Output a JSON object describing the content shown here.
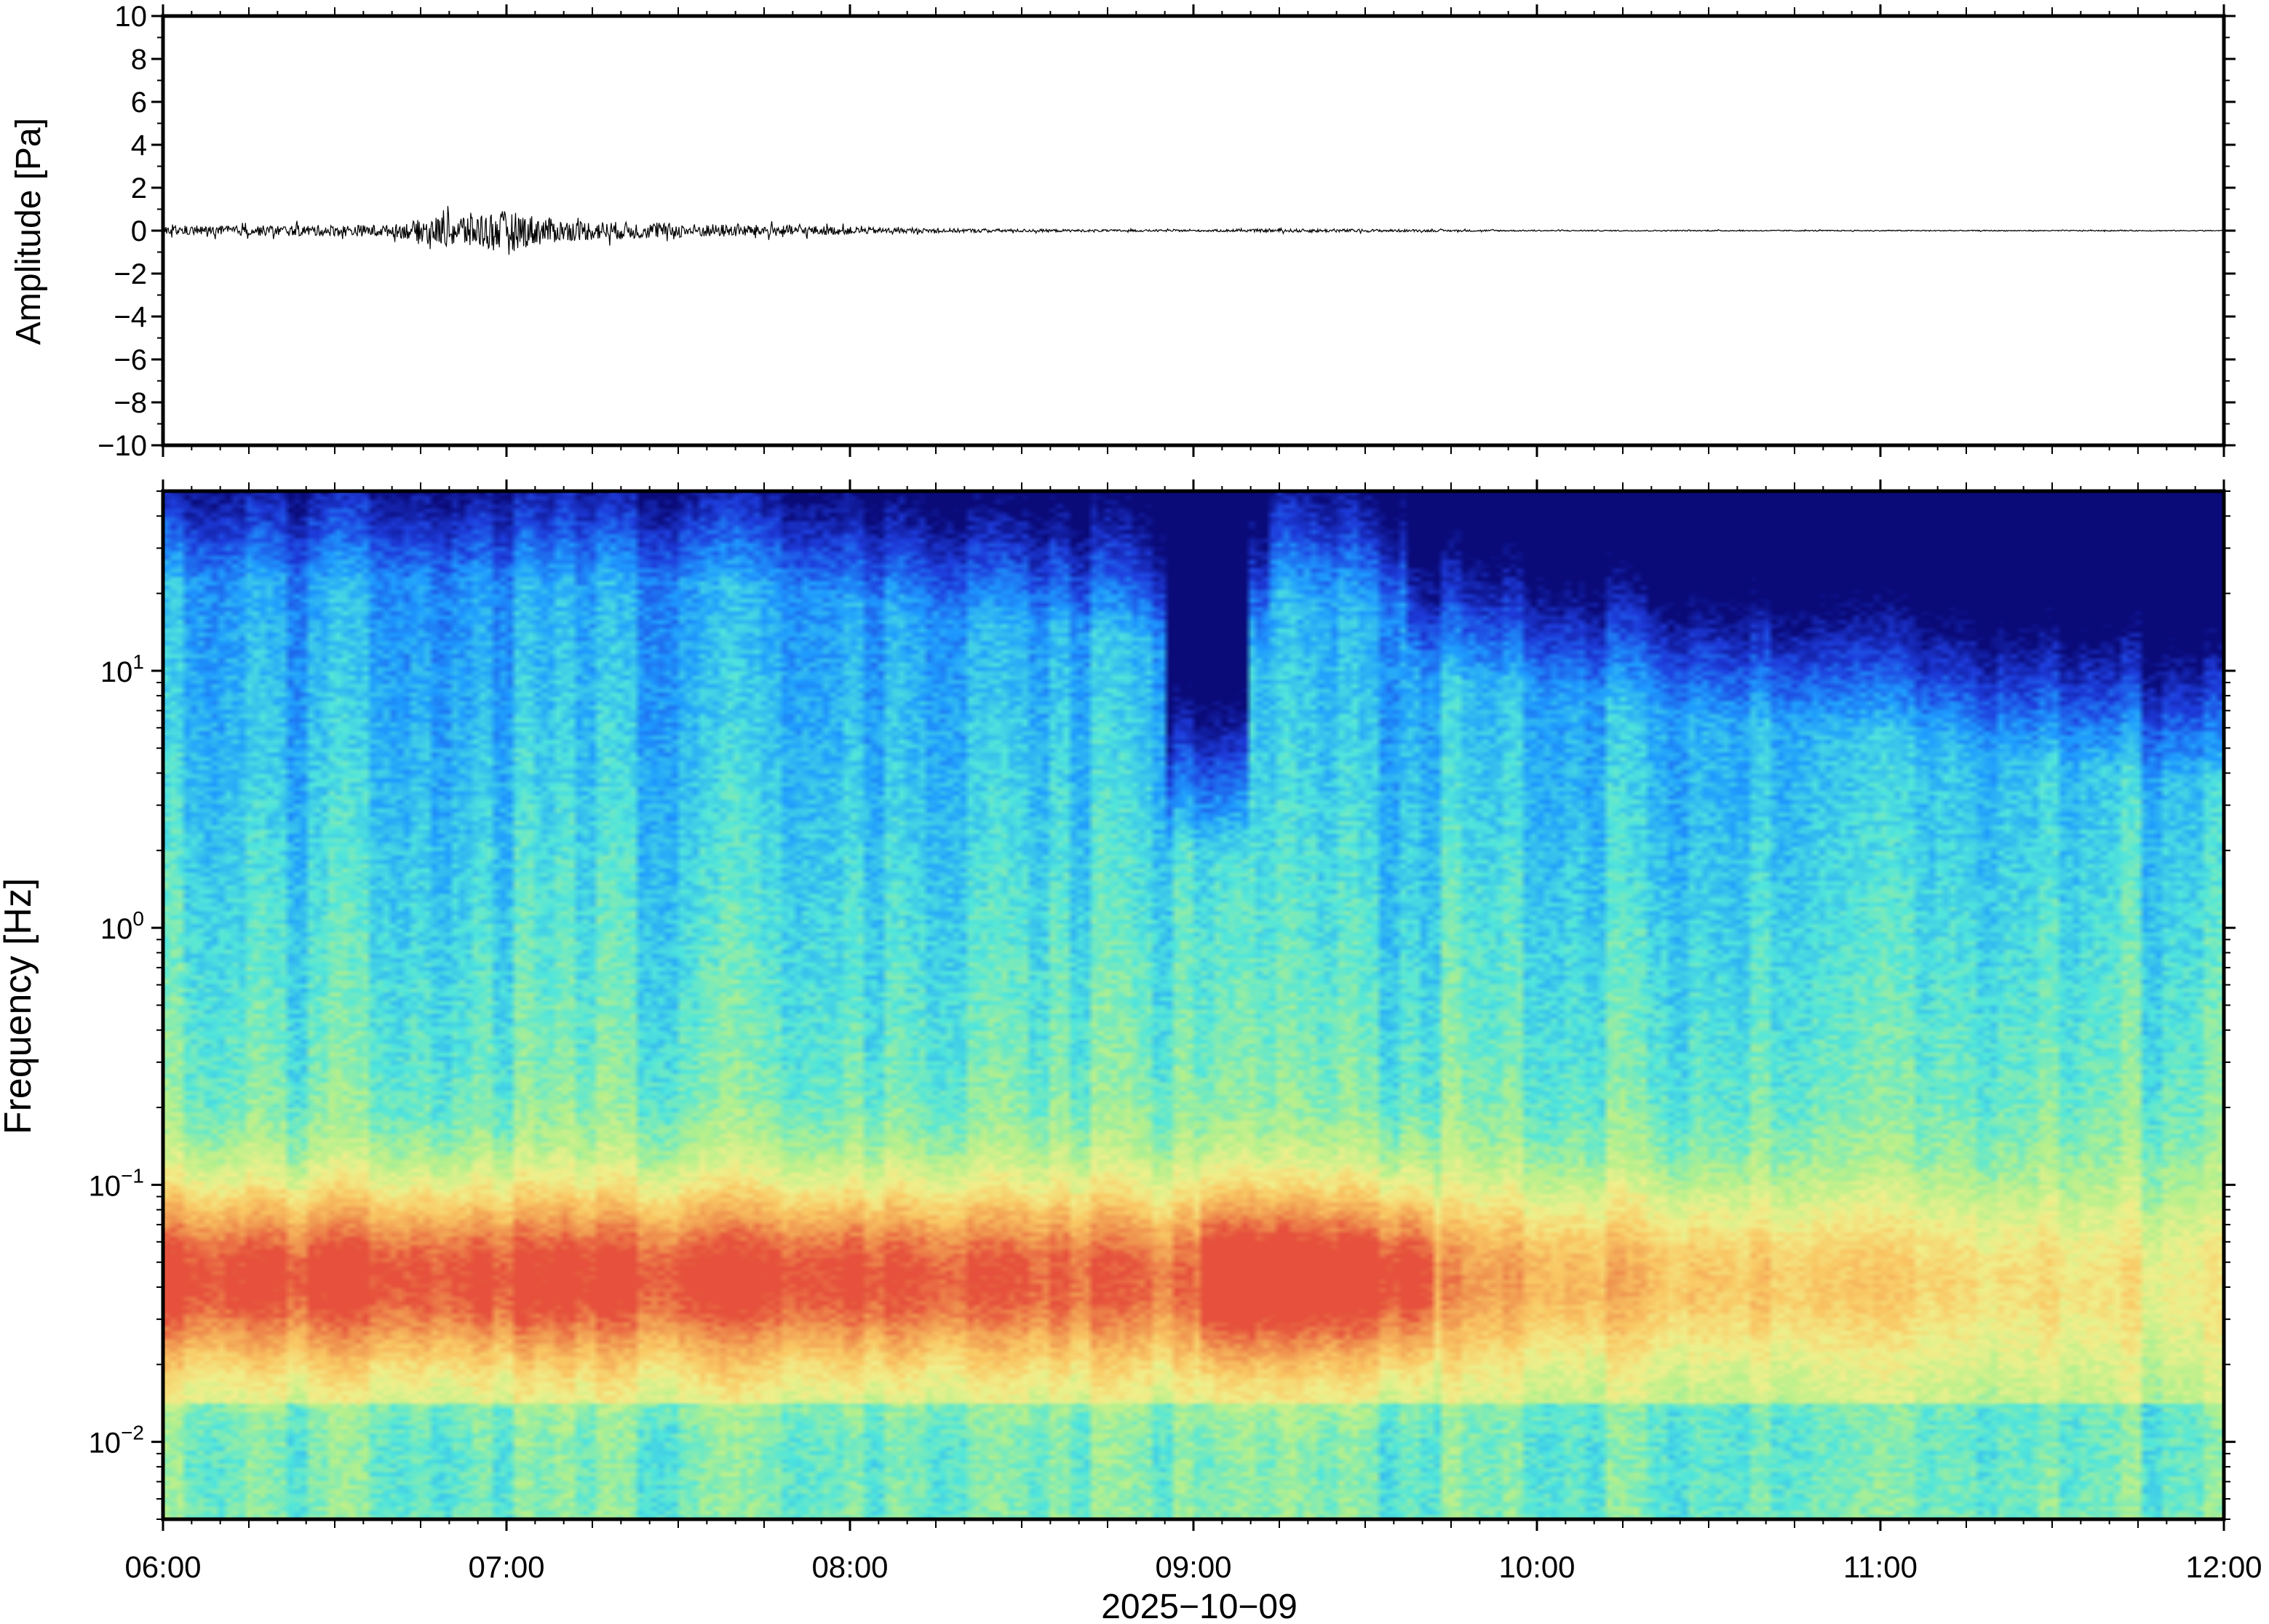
{
  "chart_data": [
    {
      "type": "line",
      "panel": "waveform",
      "ylabel": "Amplitude [Pa]",
      "ylim": [
        -10,
        10
      ],
      "yticks": [
        -10,
        -8,
        -6,
        -4,
        -2,
        0,
        2,
        4,
        6,
        8,
        10
      ],
      "ytick_labels": [
        "−10",
        "−8",
        "−6",
        "−4",
        "−2",
        "0",
        "2",
        "4",
        "6",
        "8",
        "10"
      ],
      "xlim": [
        "06:00",
        "12:00"
      ],
      "trace_color": "#000000",
      "envelope": [
        {
          "t": "06:00",
          "amp": 0.35
        },
        {
          "t": "06:20",
          "amp": 0.45
        },
        {
          "t": "06:40",
          "amp": 0.5
        },
        {
          "t": "06:50",
          "amp": 1.4
        },
        {
          "t": "07:00",
          "amp": 1.7
        },
        {
          "t": "07:10",
          "amp": 0.9
        },
        {
          "t": "07:30",
          "amp": 0.6
        },
        {
          "t": "07:50",
          "amp": 0.45
        },
        {
          "t": "08:10",
          "amp": 0.2
        },
        {
          "t": "08:40",
          "amp": 0.1
        },
        {
          "t": "09:00",
          "amp": 0.08
        },
        {
          "t": "09:20",
          "amp": 0.15
        },
        {
          "t": "09:40",
          "amp": 0.1
        },
        {
          "t": "10:00",
          "amp": 0.05
        },
        {
          "t": "12:00",
          "amp": 0.04
        }
      ]
    },
    {
      "type": "heatmap",
      "panel": "spectrogram",
      "ylabel": "Frequency [Hz]",
      "xlabel": "2025−10−09",
      "yscale": "log",
      "ylim": [
        0.005,
        50
      ],
      "ytick_labels": [
        {
          "base": "10",
          "exp": "−2",
          "value": 0.01
        },
        {
          "base": "10",
          "exp": "−1",
          "value": 0.1
        },
        {
          "base": "10",
          "exp": "0",
          "value": 1
        },
        {
          "base": "10",
          "exp": "1",
          "value": 10
        }
      ],
      "xtick_labels": [
        "06:00",
        "07:00",
        "08:00",
        "09:00",
        "10:00",
        "11:00",
        "12:00"
      ],
      "colormap": [
        "#0a0a78",
        "#1e3cdc",
        "#1e9bff",
        "#50e6dc",
        "#b4f08c",
        "#f0f08c",
        "#fac864",
        "#f09650",
        "#e6503c"
      ]
    }
  ]
}
